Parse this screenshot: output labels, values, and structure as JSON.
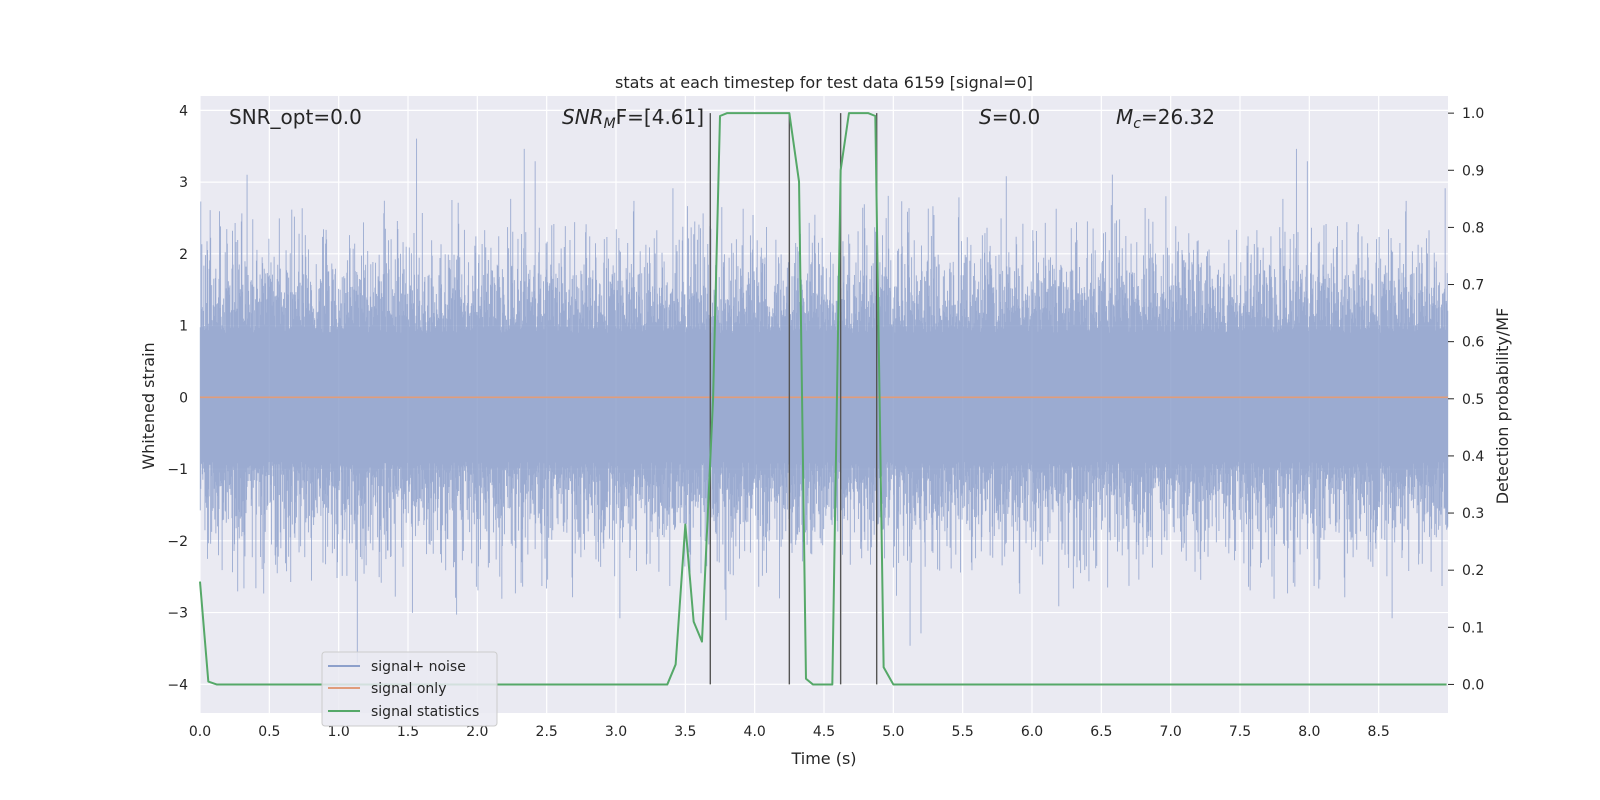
{
  "chart_data": {
    "type": "line",
    "title": "stats at each timestep for test data 6159 [signal=0]",
    "xlabel": "Time (s)",
    "ylabel": "Whitened strain",
    "ylabel_right": "Detection probability/MF",
    "xlim": [
      0.0,
      9.0
    ],
    "ylim": [
      -4.4,
      4.2
    ],
    "ylim_right": [
      -0.05,
      1.03
    ],
    "x_ticks": [
      0.0,
      0.5,
      1.0,
      1.5,
      2.0,
      2.5,
      3.0,
      3.5,
      4.0,
      4.5,
      5.0,
      5.5,
      6.0,
      6.5,
      7.0,
      7.5,
      8.0,
      8.5
    ],
    "y_ticks": [
      -4,
      -3,
      -2,
      -1,
      0,
      1,
      2,
      3,
      4
    ],
    "y_ticks_right": [
      0.0,
      0.1,
      0.2,
      0.3,
      0.4,
      0.5,
      0.6,
      0.7,
      0.8,
      0.9,
      1.0
    ],
    "grid": true,
    "legend_position": "lower-left",
    "annotations": {
      "snr_opt": "SNR_opt=0.0",
      "snr_mf_label": "SNR",
      "snr_mf_sub": "M",
      "snr_mf_tail": "F=[4.61]",
      "s_label": "S",
      "s_tail": "=0.0",
      "mc_label": "M",
      "mc_sub": "c",
      "mc_tail": "=26.32"
    },
    "series": [
      {
        "name": "signal+ noise",
        "color": "#8da0cb",
        "axis": "left",
        "description_values": "noise samples within about ±2, peaks up to ±3.7"
      },
      {
        "name": "signal only",
        "color": "#e09c7a",
        "axis": "left",
        "x": [
          0.0,
          9.0
        ],
        "y": [
          0.0,
          0.0
        ]
      },
      {
        "name": "signal statistics",
        "color": "#55a868",
        "axis": "right",
        "x": [
          0.0,
          0.06,
          0.12,
          0.5,
          1.0,
          1.5,
          2.0,
          2.5,
          3.0,
          3.37,
          3.43,
          3.5,
          3.56,
          3.62,
          3.7,
          3.75,
          3.8,
          3.87,
          4.0,
          4.1,
          4.25,
          4.32,
          4.37,
          4.42,
          4.5,
          4.56,
          4.62,
          4.68,
          4.75,
          4.82,
          4.87,
          4.93,
          5.0,
          5.5,
          6.0,
          6.5,
          7.0,
          7.5,
          8.0,
          8.5,
          8.99
        ],
        "y": [
          0.18,
          0.005,
          0.0,
          0.0,
          0.0,
          0.0,
          0.0,
          0.0,
          0.0,
          0.0,
          0.035,
          0.28,
          0.11,
          0.075,
          0.5,
          0.995,
          1.0,
          1.0,
          1.0,
          1.0,
          1.0,
          0.88,
          0.01,
          0.0,
          0.0,
          0.0,
          0.9,
          1.0,
          1.0,
          1.0,
          0.995,
          0.03,
          0.0,
          0.0,
          0.0,
          0.0,
          0.0,
          0.0,
          0.0,
          0.0,
          0.0
        ]
      }
    ],
    "vertical_lines_x": [
      3.68,
      4.25,
      4.62,
      4.88
    ]
  }
}
